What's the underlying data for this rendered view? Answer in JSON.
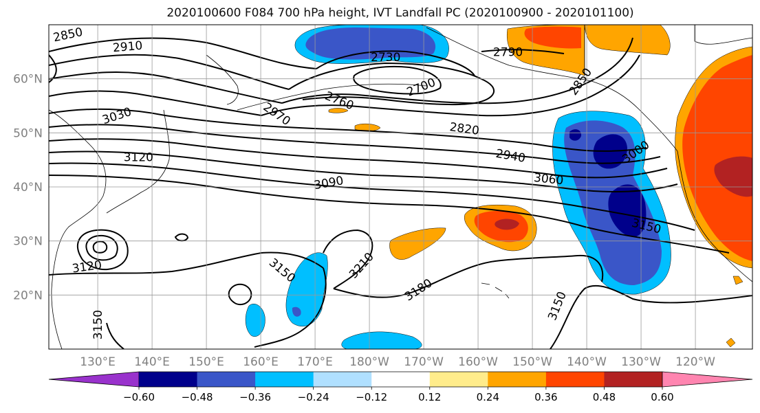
{
  "title": "2020100600 F084 700 hPa height, IVT Landfall PC (2020100900 - 2020101100)",
  "map": {
    "lat_ticks": [
      {
        "value": 60,
        "label": "60°N"
      },
      {
        "value": 50,
        "label": "50°N"
      },
      {
        "value": 40,
        "label": "40°N"
      },
      {
        "value": 30,
        "label": "30°N"
      },
      {
        "value": 20,
        "label": "20°N"
      }
    ],
    "lon_ticks": [
      {
        "value": 130,
        "label": "130°E"
      },
      {
        "value": 140,
        "label": "140°E"
      },
      {
        "value": 150,
        "label": "150°E"
      },
      {
        "value": 160,
        "label": "160°E"
      },
      {
        "value": 170,
        "label": "170°E"
      },
      {
        "value": 180,
        "label": "180°W"
      },
      {
        "value": 190,
        "label": "170°W"
      },
      {
        "value": 200,
        "label": "160°W"
      },
      {
        "value": 210,
        "label": "150°W"
      },
      {
        "value": 220,
        "label": "140°W"
      },
      {
        "value": 230,
        "label": "130°W"
      },
      {
        "value": 240,
        "label": "120°W"
      }
    ],
    "contour_labels": [
      {
        "text": "2850",
        "lon": 124.5,
        "lat": 68.2,
        "rot": -12
      },
      {
        "text": "2910",
        "lon": 135.5,
        "lat": 66.0,
        "rot": -5
      },
      {
        "text": "2730",
        "lon": 183.0,
        "lat": 64.0,
        "rot": 0
      },
      {
        "text": "2790",
        "lon": 205.5,
        "lat": 65.0,
        "rot": 0
      },
      {
        "text": "2700",
        "lon": 189.5,
        "lat": 58.5,
        "rot": -22
      },
      {
        "text": "2760",
        "lon": 174.5,
        "lat": 56.0,
        "rot": 22
      },
      {
        "text": "3030",
        "lon": 133.5,
        "lat": 53.2,
        "rot": -18
      },
      {
        "text": "2970",
        "lon": 163.0,
        "lat": 53.5,
        "rot": 35
      },
      {
        "text": "2820",
        "lon": 197.5,
        "lat": 50.8,
        "rot": 8
      },
      {
        "text": "2850",
        "lon": 218.8,
        "lat": 59.5,
        "rot": -55
      },
      {
        "text": "3120",
        "lon": 137.5,
        "lat": 45.5,
        "rot": 0
      },
      {
        "text": "2940",
        "lon": 206.0,
        "lat": 45.8,
        "rot": 10
      },
      {
        "text": "3000",
        "lon": 229.0,
        "lat": 46.5,
        "rot": -35
      },
      {
        "text": "3090",
        "lon": 172.5,
        "lat": 40.8,
        "rot": -10
      },
      {
        "text": "3060",
        "lon": 213.0,
        "lat": 41.5,
        "rot": 6
      },
      {
        "text": "3150",
        "lon": 231.0,
        "lat": 32.8,
        "rot": 14
      },
      {
        "text": "3120",
        "lon": 128.0,
        "lat": 25.3,
        "rot": -8
      },
      {
        "text": "3150",
        "lon": 164.0,
        "lat": 24.6,
        "rot": 40
      },
      {
        "text": "3210",
        "lon": 178.5,
        "lat": 25.5,
        "rot": -48
      },
      {
        "text": "3180",
        "lon": 189.0,
        "lat": 21.0,
        "rot": -33
      },
      {
        "text": "3150",
        "lon": 214.5,
        "lat": 18.0,
        "rot": -68
      },
      {
        "text": "3150",
        "lon": 130.0,
        "lat": 14.5,
        "rot": -90
      }
    ]
  },
  "colorbar": {
    "tick_labels": [
      "−0.60",
      "−0.48",
      "−0.36",
      "−0.24",
      "−0.12",
      "0.12",
      "0.24",
      "0.36",
      "0.48",
      "0.60"
    ],
    "colors": [
      "#9932cc",
      "#00008b",
      "#3a56c8",
      "#00bfff",
      "#b0e0ff",
      "#ffffff",
      "#ffec8b",
      "#ffa500",
      "#ff4500",
      "#b22222",
      "#ff85b0"
    ]
  }
}
